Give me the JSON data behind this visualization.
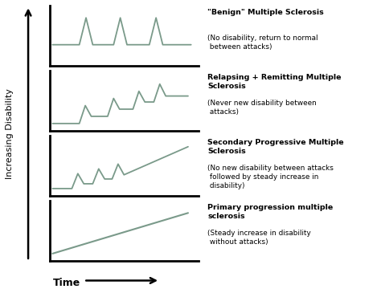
{
  "background_color": "#ffffff",
  "line_color": "#7a9a8a",
  "axis_color": "#000000",
  "text_color": "#000000",
  "panels": [
    {
      "title": "\"Benign\" Multiple Sclerosis",
      "subtitle": "(No disability, return to normal\n between attacks)",
      "type": "benign"
    },
    {
      "title": "Relapsing + Remitting Multiple\nSclerosis",
      "subtitle": "(Never new disability between\n attacks)",
      "type": "relapsing"
    },
    {
      "title": "Secondary Progressive Multiple\nSclerosis",
      "subtitle": "(No new disability between attacks\n followed by steady increase in\n disability)",
      "type": "secondary"
    },
    {
      "title": "Primary progression multiple\nsclerosis",
      "subtitle": "(Steady increase in disability\n without attacks)",
      "type": "primary"
    }
  ],
  "ylabel": "Increasing Disability",
  "xlabel": "Time",
  "figsize": [
    4.74,
    3.65
  ],
  "dpi": 100
}
